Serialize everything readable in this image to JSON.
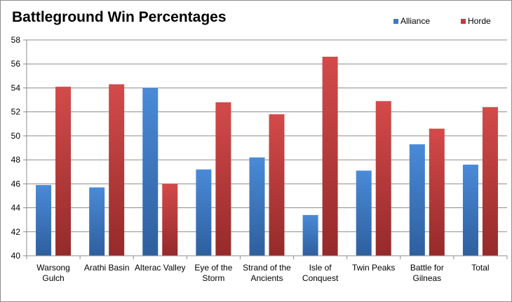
{
  "chart_data": {
    "type": "bar",
    "title": "Battleground Win Percentages",
    "categories": [
      [
        "Warsong",
        "Gulch"
      ],
      [
        "Arathi Basin"
      ],
      [
        "Alterac Valley"
      ],
      [
        "Eye of the",
        "Storm"
      ],
      [
        "Strand of the",
        "Ancients"
      ],
      [
        "Isle of",
        "Conquest"
      ],
      [
        "Twin Peaks"
      ],
      [
        "Battle for",
        "Gilneas"
      ],
      [
        "Total"
      ]
    ],
    "series": [
      {
        "name": "Alliance",
        "color": "#3a78c9",
        "values": [
          45.9,
          45.7,
          54.0,
          47.2,
          48.2,
          43.4,
          47.1,
          49.3,
          47.6
        ]
      },
      {
        "name": "Horde",
        "color": "#c43a3a",
        "values": [
          54.1,
          54.3,
          46.0,
          52.8,
          51.8,
          56.6,
          52.9,
          50.6,
          52.4
        ]
      }
    ],
    "ylim": [
      40,
      58
    ],
    "yticks": [
      40,
      42,
      44,
      46,
      48,
      50,
      52,
      54,
      56,
      58
    ],
    "grid": true,
    "legend_position": "top-right"
  }
}
